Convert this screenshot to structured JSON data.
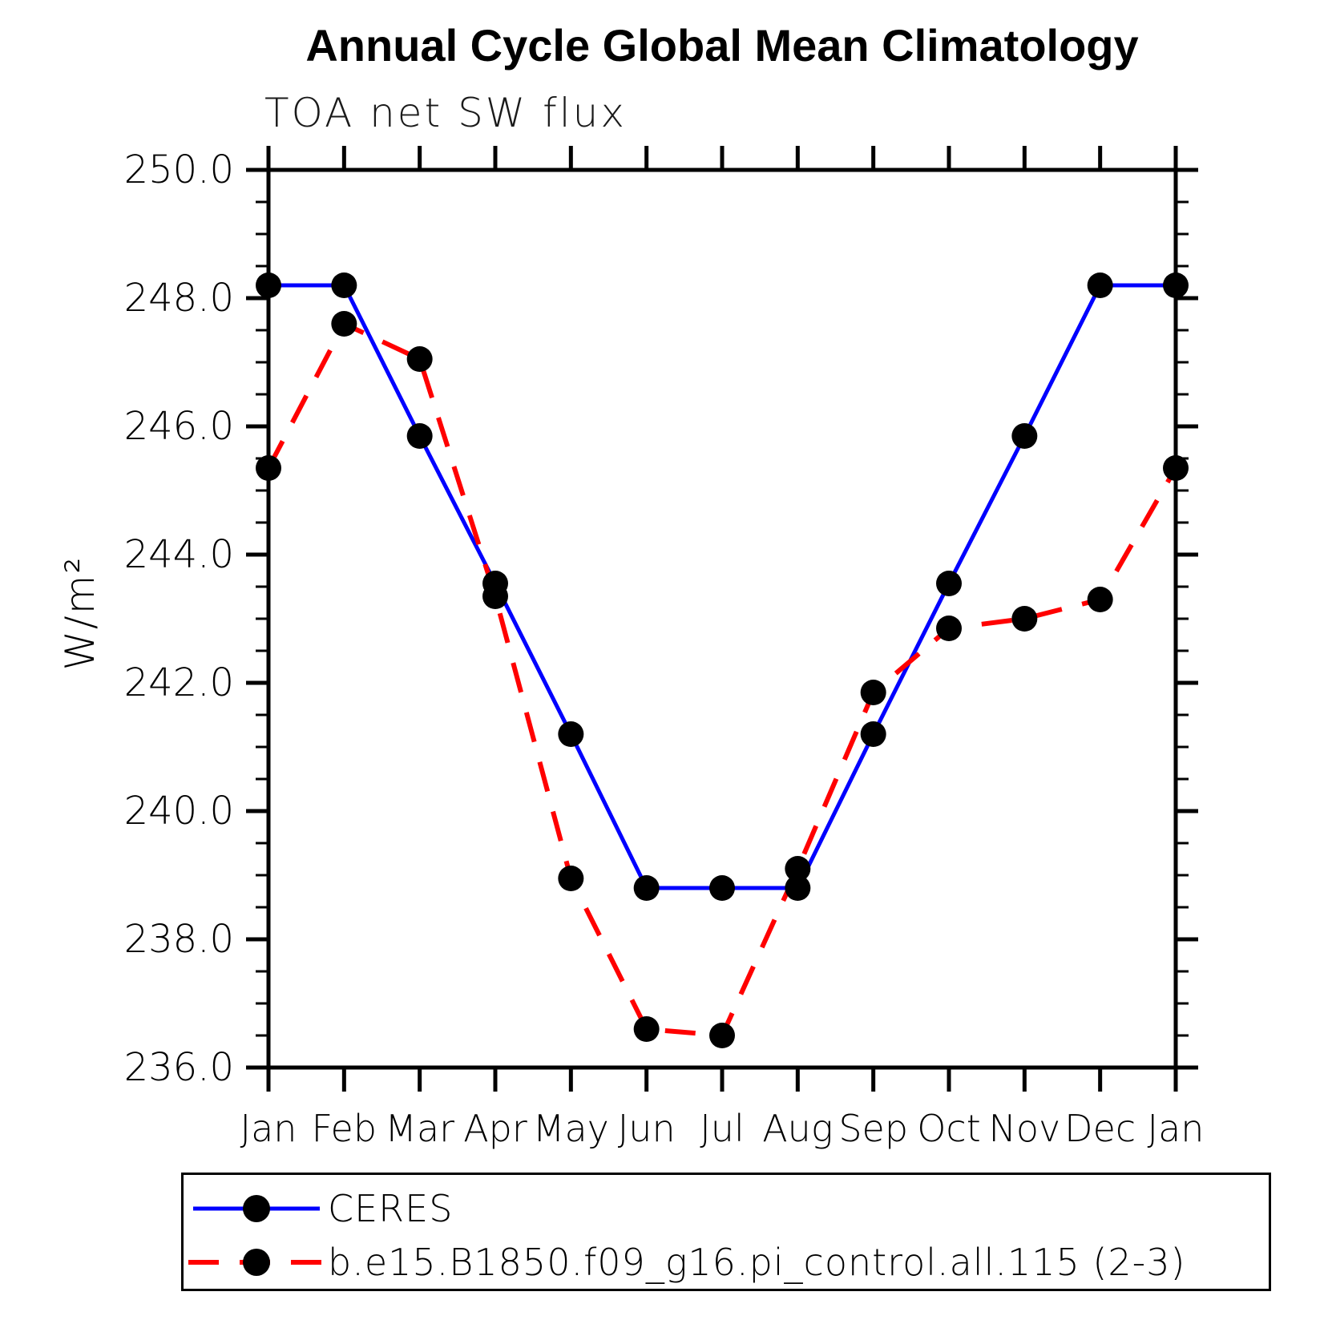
{
  "page": {
    "background": "#ffffff"
  },
  "header": {
    "title": "Annual Cycle Global Mean Climatology",
    "subtitle": "TOA net SW flux"
  },
  "chart_data": {
    "type": "line",
    "title": "Annual Cycle Global Mean Climatology",
    "subtitle": "TOA net SW flux",
    "xlabel": "",
    "ylabel": "W/m²",
    "categories": [
      "Jan",
      "Feb",
      "Mar",
      "Apr",
      "May",
      "Jun",
      "Jul",
      "Aug",
      "Sep",
      "Oct",
      "Nov",
      "Dec",
      "Jan"
    ],
    "ylim": [
      236.0,
      250.0
    ],
    "ytick_major_interval": 2.0,
    "ytick_minor_interval": 0.5,
    "ytick_labels": [
      "236.0",
      "238.0",
      "240.0",
      "242.0",
      "244.0",
      "246.0",
      "248.0",
      "250.0"
    ],
    "grid": false,
    "legend_position": "bottom-left-box",
    "series": [
      {
        "name": "CERES",
        "color": "#0000ff",
        "style": "solid",
        "marker": "filled-circle",
        "marker_color": "#000000",
        "values": [
          248.2,
          248.2,
          245.85,
          243.55,
          241.2,
          238.8,
          238.8,
          238.8,
          241.2,
          243.55,
          245.85,
          248.2,
          248.2
        ]
      },
      {
        "name": "b.e15.B1850.f09_g16.pi_control.all.115 (2-3)",
        "color": "#ff0000",
        "style": "dashed",
        "marker": "filled-circle",
        "marker_color": "#000000",
        "values": [
          245.35,
          247.6,
          247.05,
          243.35,
          238.95,
          236.6,
          236.5,
          239.1,
          241.85,
          242.85,
          243.0,
          243.3,
          245.35
        ]
      }
    ]
  }
}
